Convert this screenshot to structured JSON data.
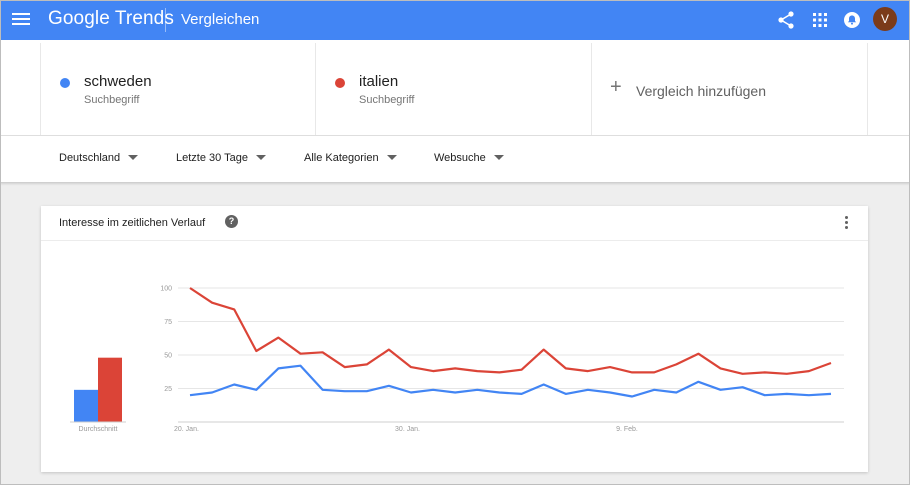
{
  "header": {
    "logo": "Google Trends",
    "page_title": "Vergleichen",
    "avatar_initial": "V"
  },
  "terms": [
    {
      "name": "schweden",
      "sub": "Suchbegriff",
      "color": "#4285f4"
    },
    {
      "name": "italien",
      "sub": "Suchbegriff",
      "color": "#db4437"
    }
  ],
  "add_comparison": "Vergleich hinzufügen",
  "filters": {
    "region": "Deutschland",
    "time": "Letzte 30 Tage",
    "category": "Alle Kategorien",
    "search_type": "Websuche"
  },
  "card": {
    "title": "Interesse im zeitlichen Verlauf"
  },
  "chart_data": {
    "type": "line",
    "title": "Interesse im zeitlichen Verlauf",
    "ylim": [
      0,
      100
    ],
    "y_ticks": [
      "100",
      "75",
      "50",
      "25"
    ],
    "x_tick_labels": [
      "20. Jan.",
      "30. Jan.",
      "9. Feb."
    ],
    "x_tick_index": [
      0,
      10,
      20
    ],
    "grid": true,
    "series": [
      {
        "name": "schweden",
        "color": "#4285f4",
        "values": [
          20,
          22,
          28,
          24,
          40,
          42,
          24,
          23,
          23,
          27,
          22,
          24,
          22,
          24,
          22,
          21,
          28,
          21,
          24,
          22,
          19,
          24,
          22,
          30,
          24,
          26,
          20,
          21,
          20,
          21
        ]
      },
      {
        "name": "italien",
        "color": "#db4437",
        "values": [
          100,
          89,
          84,
          53,
          63,
          51,
          52,
          41,
          43,
          54,
          41,
          38,
          40,
          38,
          37,
          39,
          54,
          40,
          38,
          41,
          37,
          37,
          43,
          51,
          40,
          36,
          37,
          36,
          38,
          44
        ]
      }
    ],
    "averages": {
      "label": "Durchschnitt",
      "values": [
        {
          "name": "schweden",
          "value": 24,
          "color": "#4285f4"
        },
        {
          "name": "italien",
          "value": 48,
          "color": "#db4437"
        }
      ]
    }
  }
}
